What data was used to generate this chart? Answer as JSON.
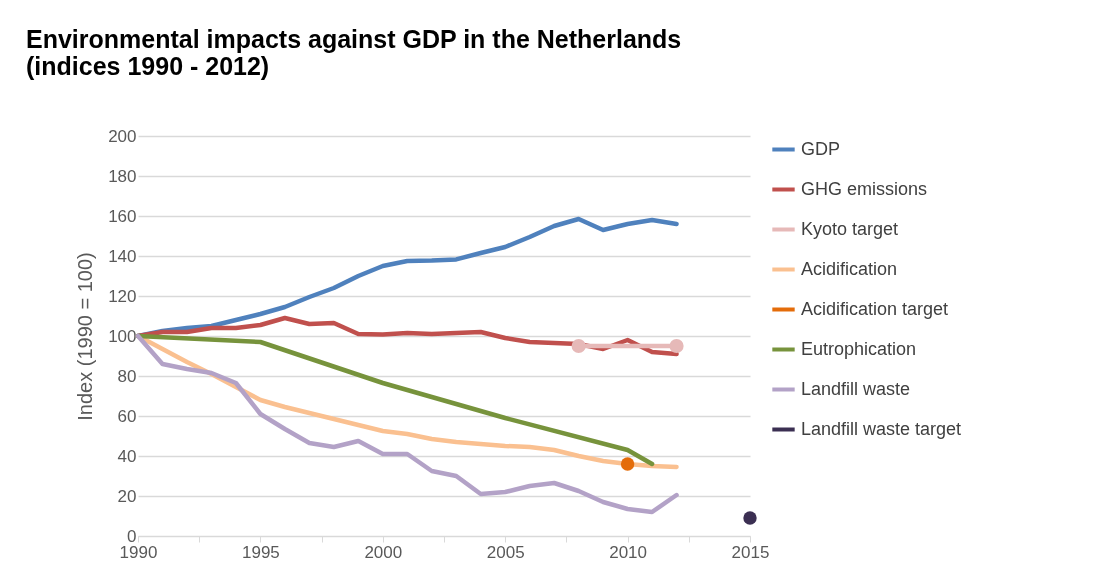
{
  "chart_data": {
    "type": "line",
    "title": "Environmental impacts against GDP in the Netherlands\n(indices 1990 - 2012)",
    "ylabel": "Index (1990 = 100)",
    "x": [
      1990,
      1991,
      1992,
      1993,
      1994,
      1995,
      1996,
      1997,
      1998,
      1999,
      2000,
      2001,
      2002,
      2003,
      2004,
      2005,
      2006,
      2007,
      2008,
      2009,
      2010,
      2011,
      2012
    ],
    "series": [
      {
        "name": "GDP",
        "color": "#4f81bd",
        "values": [
          100,
          102.5,
          104,
          105,
          108,
          111,
          114.5,
          119.5,
          124,
          130,
          135,
          137.5,
          137.7,
          138.3,
          141.5,
          144.5,
          149.5,
          155,
          158.5,
          153,
          156,
          158,
          156
        ]
      },
      {
        "name": "GHG emissions",
        "color": "#c0504d",
        "values": [
          100,
          102,
          102,
          104,
          104,
          105.5,
          109,
          106,
          106.5,
          101,
          100.8,
          101.5,
          101,
          101.5,
          102,
          99,
          97,
          96.5,
          96,
          93.5,
          98,
          92,
          91
        ]
      },
      {
        "name": "Kyoto target",
        "color": "#e6b9b8",
        "marker": "circle",
        "x": [
          2008,
          2012
        ],
        "values": [
          95,
          95
        ]
      },
      {
        "name": "Acidification",
        "color": "#fac090",
        "values": [
          100,
          93.5,
          87,
          81,
          74.5,
          68,
          64.5,
          61.5,
          58.5,
          55.5,
          52.5,
          51,
          48.5,
          47,
          46,
          45,
          44.5,
          43,
          40,
          37.5,
          36,
          35,
          34.5
        ]
      },
      {
        "name": "Acidification target",
        "color": "#e46c0a",
        "type": "scatter",
        "marker": "circle",
        "x": [
          2010
        ],
        "values": [
          36
        ]
      },
      {
        "name": "Eutrophication",
        "color": "#77933c",
        "x": [
          1990,
          1995,
          2000,
          2005,
          2010,
          2011
        ],
        "values": [
          100,
          97,
          76.5,
          59,
          43,
          36
        ]
      },
      {
        "name": "Landfill waste",
        "color": "#b3a2c7",
        "values": [
          100,
          86,
          83.5,
          81.5,
          76.5,
          61,
          53.5,
          46.5,
          44.5,
          47.5,
          41,
          41,
          32.5,
          30,
          21,
          22,
          25,
          26.5,
          22.5,
          17,
          13.5,
          12,
          20.5
        ]
      },
      {
        "name": "Landfill waste target",
        "color": "#3b2f52",
        "type": "scatter",
        "marker": "circle",
        "x": [
          2015
        ],
        "values": [
          9
        ]
      }
    ],
    "xlim": [
      1990,
      2015
    ],
    "xticks": [
      1990,
      {
        "value": 1992.5,
        "label": null
      },
      1995,
      {
        "value": 1997.5,
        "label": null
      },
      2000,
      {
        "value": 2002.5,
        "label": null
      },
      2005,
      {
        "value": 2007.5,
        "label": null
      },
      2010,
      {
        "value": 2012.5,
        "label": null
      },
      2015
    ],
    "ylim": [
      0,
      200
    ],
    "yticks": [
      0,
      20,
      40,
      60,
      80,
      100,
      120,
      140,
      160,
      180,
      200
    ],
    "grid": "y",
    "legend": "right",
    "marker": "none"
  }
}
